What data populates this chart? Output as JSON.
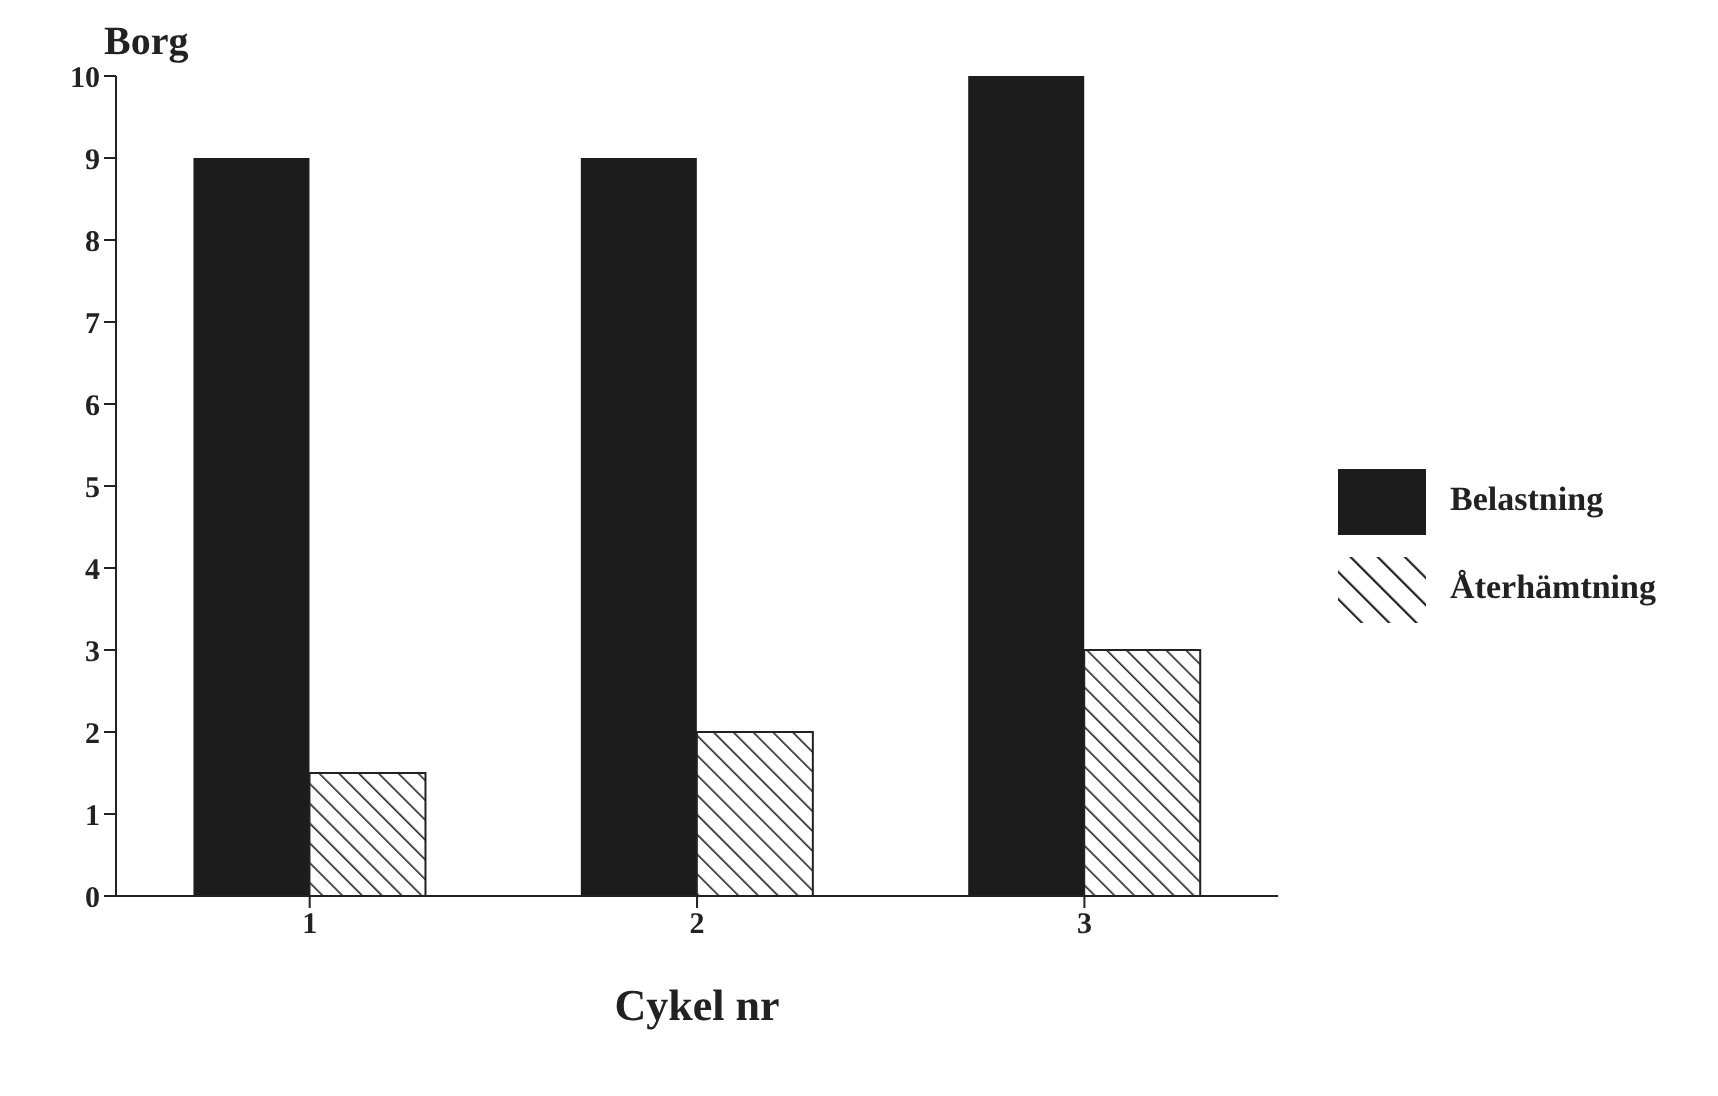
{
  "chart_data": {
    "type": "bar",
    "ylabel": "Borg",
    "xlabel": "Cykel nr",
    "categories": [
      "1",
      "2",
      "3"
    ],
    "series": [
      {
        "name": "Belastning",
        "color": "#1c1c1c",
        "values": [
          9,
          9,
          10
        ]
      },
      {
        "name": "Återhämtning",
        "color": "#222222",
        "values": [
          1.5,
          2,
          3
        ]
      }
    ],
    "ylim": [
      0,
      10
    ],
    "yticks": [
      0,
      1,
      2,
      3,
      4,
      5,
      6,
      7,
      8,
      9,
      10
    ],
    "grid": false,
    "legend": "right"
  }
}
